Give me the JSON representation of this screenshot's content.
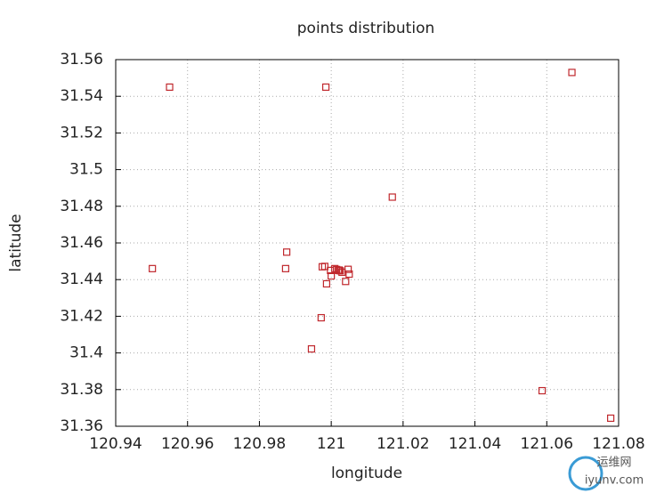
{
  "chart_data": {
    "type": "scatter",
    "title": "points distribution",
    "x_label": "longitude",
    "y_label": "latitude",
    "x": [
      120.955,
      120.9985,
      121.067,
      121.017,
      120.9876,
      120.9873,
      120.9502,
      120.9975,
      120.9982,
      120.9998,
      120.9987,
      121.0,
      121.004,
      121.005,
      121.0047,
      121.001,
      121.002,
      121.003,
      121.0015,
      121.0025,
      121.0022,
      120.9972,
      120.9945,
      121.0587,
      121.0778
    ],
    "values": [
      31.545,
      31.545,
      31.553,
      31.485,
      31.455,
      31.446,
      31.446,
      31.447,
      31.4472,
      31.445,
      31.4377,
      31.442,
      31.439,
      31.443,
      31.4456,
      31.446,
      31.445,
      31.444,
      31.4455,
      31.4448,
      31.4452,
      31.4192,
      31.4022,
      31.3794,
      31.3644
    ],
    "color": "#c0282d",
    "xlim": [
      120.94,
      121.08
    ],
    "xticks": [
      120.94,
      120.96,
      120.98,
      121,
      121.02,
      121.04,
      121.06,
      121.08
    ],
    "ylim": [
      31.36,
      31.56
    ],
    "yticks": [
      31.36,
      31.38,
      31.4,
      31.42,
      31.44,
      31.46,
      31.48,
      31.5,
      31.52,
      31.54,
      31.56
    ],
    "grid": true,
    "watermark": [
      "运维网",
      "iyunv.com"
    ]
  }
}
